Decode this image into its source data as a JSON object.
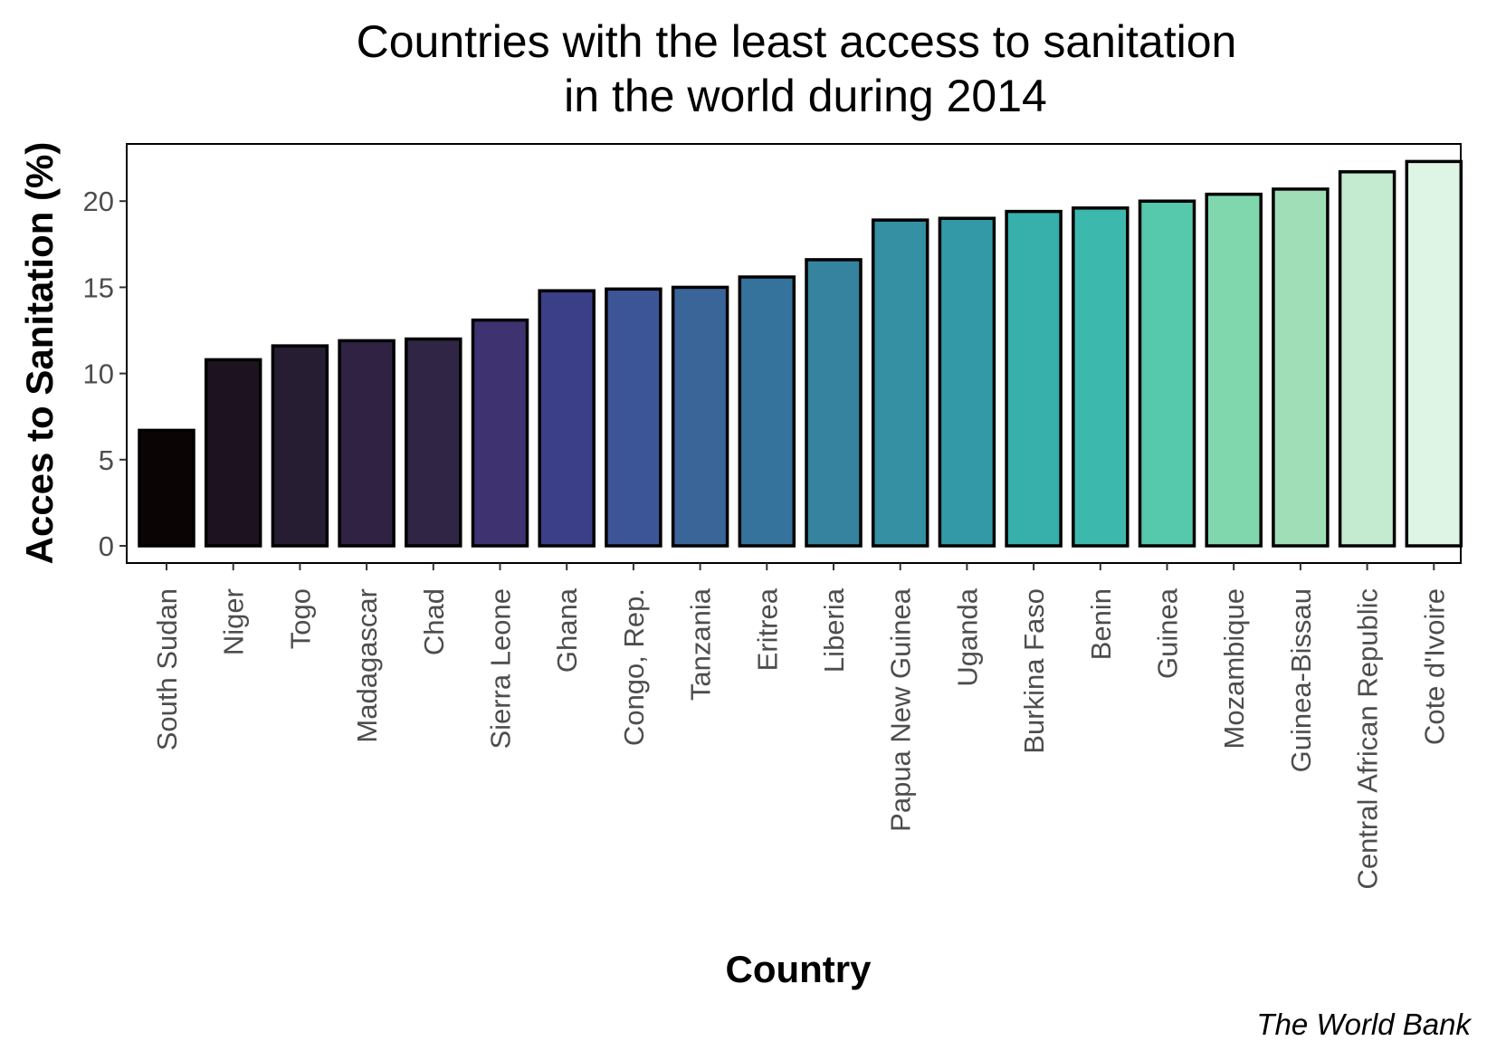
{
  "chart_data": {
    "type": "bar",
    "title": [
      "Countries with the least access to sanitation",
      "in the world during 2014"
    ],
    "xlabel": "Country",
    "ylabel": "Acces to Sanitation (%)",
    "caption": "The World Bank",
    "ylim": [
      0,
      23.3
    ],
    "yticks": [
      0,
      5,
      10,
      15,
      20
    ],
    "grid": false,
    "categories": [
      "South Sudan",
      "Niger",
      "Togo",
      "Madagascar",
      "Chad",
      "Sierra Leone",
      "Ghana",
      "Congo, Rep.",
      "Tanzania",
      "Eritrea",
      "Liberia",
      "Papua New Guinea",
      "Uganda",
      "Burkina Faso",
      "Benin",
      "Guinea",
      "Mozambique",
      "Guinea-Bissau",
      "Central African Republic",
      "Cote d'Ivoire"
    ],
    "values": [
      6.7,
      10.8,
      11.6,
      11.9,
      12.0,
      13.1,
      14.8,
      14.9,
      15.0,
      15.6,
      16.6,
      18.9,
      19.0,
      19.4,
      19.6,
      20.0,
      20.4,
      20.7,
      21.7,
      22.3
    ],
    "colors": [
      "#0b0405",
      "#1d1320",
      "#271d33",
      "#302243",
      "#312545",
      "#3e3370",
      "#3b3f88",
      "#3c5596",
      "#3a6599",
      "#35729c",
      "#35839e",
      "#3490a2",
      "#3499a6",
      "#37afab",
      "#3db8ad",
      "#56c8ac",
      "#80d6ad",
      "#9fdeb6",
      "#c4eacf",
      "#def5e5"
    ]
  }
}
